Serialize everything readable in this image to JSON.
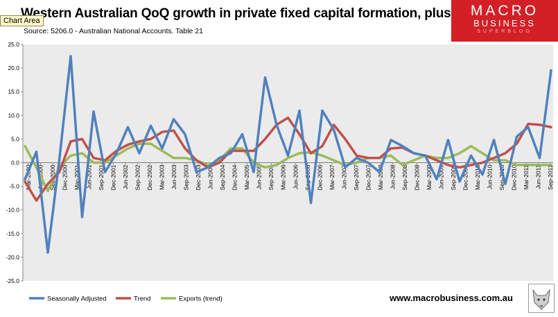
{
  "chart_data": {
    "type": "line",
    "title": "Western Australian QoQ growth in private fixed capital formation, plus exports",
    "subtitle": "Source: 5206.0 - Australian National Accounts. Table 21",
    "xlabel": "",
    "ylabel": "",
    "ylim": [
      -25,
      25
    ],
    "ytick_step": 5,
    "ytick_labels": [
      "25.0",
      "20.0",
      "15.0",
      "10.0",
      "5.0",
      "0.0",
      "-5.0",
      "-10.0",
      "-15.0",
      "-20.0",
      "-25.0"
    ],
    "grid": false,
    "legend_position": "bottom-left",
    "categories": [
      "Mar-2000",
      "Jun-2000",
      "Sep-2000",
      "Dec-2000",
      "Mar-2001",
      "Jun-2001",
      "Sep-2001",
      "Dec-2001",
      "Mar-2002",
      "Jun-2002",
      "Sep-2002",
      "Dec-2002",
      "Mar-2003",
      "Jun-2003",
      "Sep-2003",
      "Dec-2003",
      "Mar-2004",
      "Jun-2004",
      "Sep-2004",
      "Dec-2004",
      "Mar-2005",
      "Jun-2005",
      "Sep-2005",
      "Dec-2005",
      "Mar-2006",
      "Jun-2006",
      "Sep-2006",
      "Dec-2006",
      "Mar-2007",
      "Jun-2007",
      "Sep-2007",
      "Dec-2007",
      "Mar-2008",
      "Jun-2008",
      "Sep-2008",
      "Dec-2008",
      "Mar-2009",
      "Jun-2009",
      "Sep-2009",
      "Dec-2009",
      "Mar-2010",
      "Jun-2010",
      "Sep-2010",
      "Dec-2010",
      "Mar-2011",
      "Jun-2011",
      "Sep-2011"
    ],
    "x_tick_labels": [
      "Mar-2000",
      "Jun-2000",
      "Sep-2000",
      "Dec-2000",
      "Mar-2001",
      "Jun-2001",
      "Sep-2001",
      "Dec-2001",
      "Jun-2002",
      "Sep-2002",
      "Dec-2002",
      "Mar-2003",
      "Jun-2003",
      "Sep-2003",
      "Dec-2003",
      "Jun-2004",
      "Sep-2004",
      "Dec-2004",
      "Mar-2005",
      "Jun-2005",
      "Sep-2005",
      "Mar-2006",
      "Jun-2006",
      "Sep-2006",
      "Dec-2006",
      "Mar-2007",
      "Jun-2007",
      "Sep-2007",
      "Dec-2007",
      "Mar-2008",
      "Jun-2008",
      "Sep-2008",
      "Dec-2008",
      "Mar-2009",
      "Jun-2009",
      "Sep-2009",
      "Dec-2009",
      "Mar-2010",
      "Jun-2010",
      "Sep-2010",
      "Dec-2010",
      "Mar-2011",
      "Jun-2011",
      "Sep-2011"
    ],
    "series": [
      {
        "name": "Seasonally Adjusted",
        "color": "#4f81bd",
        "values": [
          -3.5,
          2.3,
          -19.0,
          0.5,
          22.5,
          -11.5,
          10.8,
          -2.0,
          2.0,
          7.5,
          2.0,
          7.8,
          3.0,
          9.2,
          6.0,
          -2.0,
          -1.0,
          1.0,
          2.0,
          6.0,
          -2.0,
          18.0,
          8.0,
          1.5,
          11.0,
          -8.5,
          11.0,
          7.0,
          -1.0,
          1.0,
          0.0,
          -2.0,
          4.8,
          3.5,
          2.0,
          1.5,
          -3.5,
          4.8,
          -4.0,
          1.5,
          -2.5,
          4.8,
          -4.5,
          5.5,
          7.5,
          1.0,
          19.5
        ]
      },
      {
        "name": "Trend",
        "color": "#c0504d",
        "values": [
          -4.0,
          -8.0,
          -4.5,
          -2.0,
          4.5,
          5.0,
          1.0,
          0.5,
          2.5,
          3.8,
          4.5,
          5.0,
          6.5,
          6.8,
          3.0,
          0.5,
          -1.0,
          0.0,
          2.5,
          2.5,
          2.5,
          5.0,
          8.0,
          9.5,
          6.0,
          2.0,
          3.5,
          8.0,
          5.0,
          1.5,
          1.0,
          1.0,
          3.0,
          3.2,
          2.0,
          1.5,
          0.5,
          -0.5,
          -1.0,
          -0.5,
          0.0,
          1.0,
          2.0,
          4.0,
          8.2,
          8.0,
          7.5
        ]
      },
      {
        "name": "Exports (trend)",
        "color": "#9bbb59",
        "values": [
          3.5,
          -1.0,
          -6.0,
          -1.0,
          1.5,
          2.0,
          0.0,
          0.0,
          1.5,
          3.0,
          4.0,
          4.0,
          2.5,
          1.0,
          1.0,
          0.5,
          -0.5,
          0.5,
          3.0,
          3.0,
          0.0,
          -1.0,
          -0.5,
          1.0,
          2.0,
          2.2,
          1.5,
          0.5,
          -0.5,
          0.0,
          1.0,
          1.0,
          1.5,
          -0.5,
          0.5,
          1.5,
          1.0,
          1.0,
          2.0,
          3.5,
          2.0,
          0.5,
          0.5,
          -0.5,
          -0.5,
          -0.5,
          -0.5
        ]
      }
    ]
  },
  "ui": {
    "tooltip": "Chart Area",
    "logo_line1": "MACRO",
    "logo_line2": "BUSINESS",
    "logo_line3": "SUPERBLOG",
    "url": "www.macrobusiness.com.au"
  }
}
